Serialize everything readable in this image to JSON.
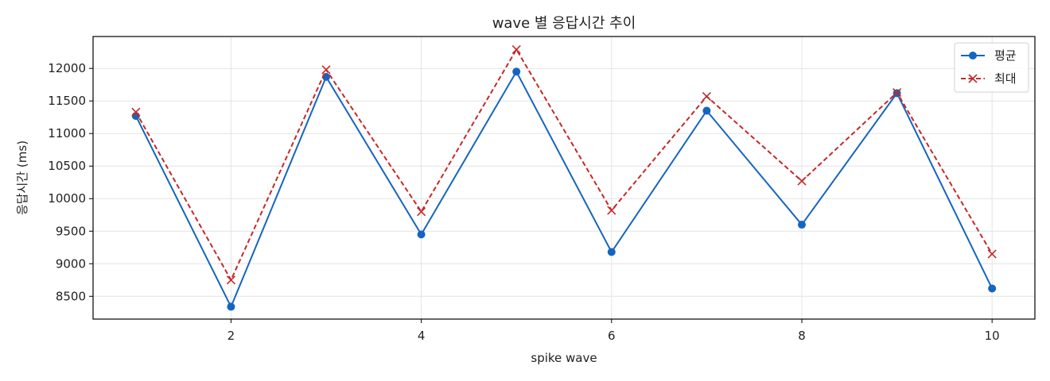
{
  "chart_data": {
    "type": "line",
    "title": "wave 별 응답시간 추이",
    "xlabel": "spike wave",
    "ylabel": "응답시간 (ms)",
    "x": [
      1,
      2,
      3,
      4,
      5,
      6,
      7,
      8,
      9,
      10
    ],
    "xticks": [
      2,
      4,
      6,
      8,
      10
    ],
    "yticks": [
      8500,
      9000,
      9500,
      10000,
      10500,
      11000,
      11500,
      12000
    ],
    "xlim": [
      0.55,
      10.45
    ],
    "ylim": [
      8150,
      12490
    ],
    "grid": true,
    "legend_position": "top-right",
    "series": [
      {
        "name": "평균",
        "color": "#1565c0",
        "line_style": "solid",
        "marker": "circle",
        "values": [
          11270,
          8340,
          11870,
          9450,
          11950,
          9180,
          11350,
          9600,
          11620,
          8620
        ]
      },
      {
        "name": "최대",
        "color": "#c62828",
        "line_style": "dashed",
        "marker": "x",
        "values": [
          11330,
          8750,
          11980,
          9800,
          12290,
          9820,
          11570,
          10270,
          11630,
          9150
        ]
      }
    ]
  }
}
